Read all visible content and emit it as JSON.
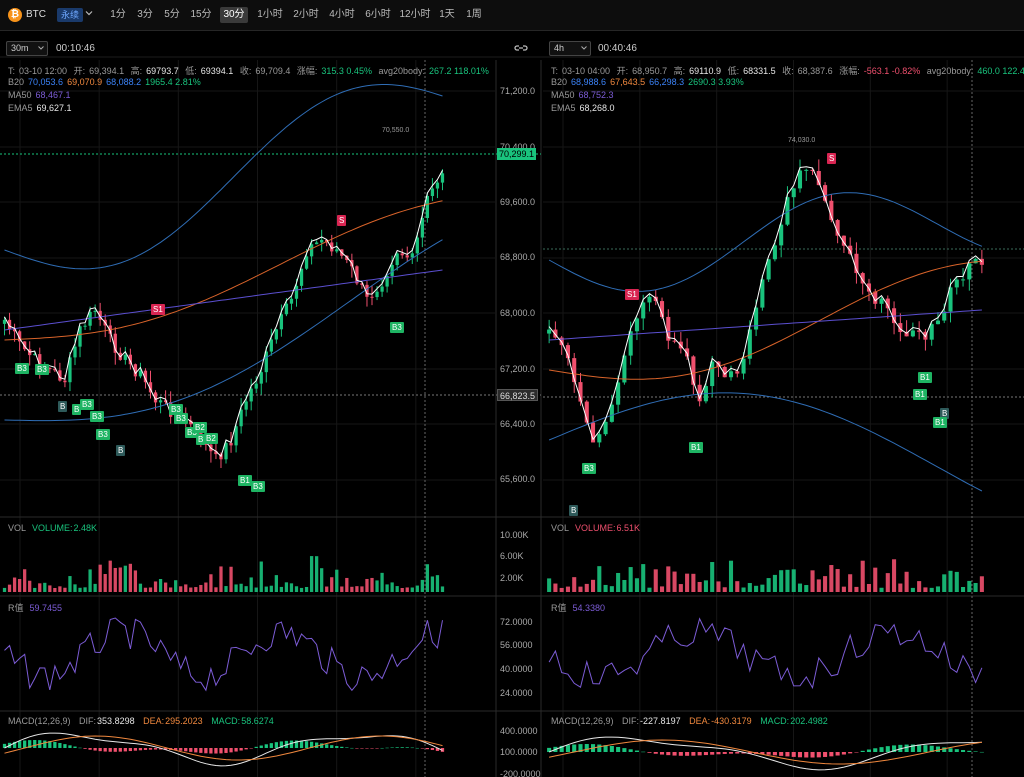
{
  "topbar": {
    "coin_icon": "bitcoin-icon",
    "coin": "BTC",
    "contract": "永续",
    "timeframes": [
      "1分",
      "3分",
      "5分",
      "15分",
      "30分",
      "1小时",
      "2小时",
      "4小时",
      "6小时",
      "12小时",
      "1天",
      "1周"
    ],
    "active_timeframe": "30分"
  },
  "left": {
    "timeframe": "30m",
    "countdown": "00:10:46",
    "ohlc": {
      "t_label": "T:",
      "t": "03-10 12:00",
      "open_label": "开:",
      "open": "69,394.1",
      "high_label": "高:",
      "high": "69793.7",
      "low_label": "低:",
      "low": "69394.1",
      "close_label": "收:",
      "close": "69,709.4",
      "chg_label": "涨幅:",
      "chg": "315.3 0.45%",
      "avg_label": "avg20body:",
      "avg": "267.2 118.01%"
    },
    "b20": {
      "label": "B20",
      "v1": "70,053.6",
      "v2": "69,070.9",
      "v3": "68,088.2",
      "v4": "1965.4 2.81%"
    },
    "ma50": {
      "label": "MA50",
      "value": "68,467.1"
    },
    "ema5": {
      "label": "EMA5",
      "value": "69,627.1"
    },
    "price_axis": [
      "71,200.0",
      "70,400.0",
      "69,600.0",
      "68,800.0",
      "68,000.0",
      "67,200.0",
      "66,400.0",
      "65,600.0"
    ],
    "current_price": "70,299.1",
    "crosshair_price": "66,823.5",
    "high_marker": "70,550.0",
    "signals": [
      "B3",
      "B3",
      "B",
      "B",
      "B3",
      "B3",
      "B3",
      "B",
      "S1",
      "B3",
      "B3",
      "B3",
      "B2",
      "B",
      "B2",
      "B1",
      "B3",
      "S",
      "B3"
    ],
    "vol": {
      "label": "VOL",
      "value_label": "VOLUME:",
      "value": "2.48K",
      "axis": [
        "10.00K",
        "6.00K",
        "2.00K"
      ]
    },
    "rsi": {
      "label": "R值",
      "value": "59.7455",
      "axis": [
        "72.0000",
        "56.0000",
        "40.0000",
        "24.0000"
      ]
    },
    "macd": {
      "label": "MACD(12,26,9)",
      "dif_label": "DIF:",
      "dif": "353.8298",
      "dea_label": "DEA:",
      "dea": "295.2023",
      "macd_label": "MACD:",
      "macd": "58.6274",
      "axis": [
        "400.0000",
        "100.0000",
        "-200.0000"
      ]
    }
  },
  "right": {
    "timeframe": "4h",
    "countdown": "00:40:46",
    "ohlc": {
      "t_label": "T:",
      "t": "03-10 04:00",
      "open_label": "开:",
      "open": "68,950.7",
      "high_label": "高:",
      "high": "69110.9",
      "low_label": "低:",
      "low": "68331.5",
      "close_label": "收:",
      "close": "68,387.6",
      "chg_label": "涨幅:",
      "chg": "-563.1 -0.82%",
      "avg_label": "avg20body:",
      "avg": "460.0 122.42%"
    },
    "b20": {
      "label": "B20",
      "v1": "68,988.6",
      "v2": "67,643.5",
      "v3": "66,298.3",
      "v4": "2690.3 3.93%"
    },
    "ma50": {
      "label": "MA50",
      "value": "68,752.3"
    },
    "ema5": {
      "label": "EMA5",
      "value": "68,268.0"
    },
    "high_marker": "74,030.0",
    "signals": [
      "S1",
      "S",
      "B3",
      "B",
      "B1",
      "B1",
      "B1",
      "B",
      "B1"
    ],
    "vol": {
      "label": "VOL",
      "value_label": "VOLUME:",
      "value": "6.51K"
    },
    "rsi": {
      "label": "R值",
      "value": "54.3380"
    },
    "macd": {
      "label": "MACD(12,26,9)",
      "dif_label": "DIF:",
      "dif": "-227.8197",
      "dea_label": "DEA:",
      "dea": "-430.3179",
      "macd_label": "MACD:",
      "macd": "202.4982"
    }
  },
  "colors": {
    "up": "#19c37d",
    "down": "#f0506e",
    "band": "#2f6db5",
    "ma": "#d8632a",
    "ema": "#ffffff",
    "ma50": "#5b4fd0",
    "rsi": "#7c5cd6",
    "dea": "#f0883e",
    "dif": "#e8e8e8"
  }
}
